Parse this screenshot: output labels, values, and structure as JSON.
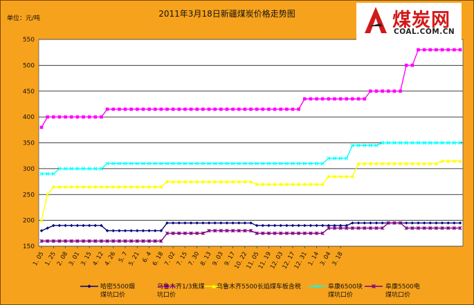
{
  "logo": {
    "title": "煤炭网",
    "subtitle": "COAL.COM.CN"
  },
  "chart_data": {
    "type": "line",
    "title": "2011年3月18日新疆煤炭价格走势图",
    "ylabel": "单位：元/吨",
    "xlabel": "",
    "ylim": [
      150,
      550
    ],
    "yticks": [
      150,
      200,
      250,
      300,
      350,
      400,
      450,
      500,
      550
    ],
    "grid": true,
    "legend_position": "bottom",
    "x_ticks": [
      "1. 05",
      "1. 25",
      "2. 08",
      "3. 01",
      "3. 15",
      "4. 12",
      "4. 26",
      "5. 7",
      "5. 21",
      "6. 4",
      "6. 18",
      "7. 02",
      "7. 15",
      "7. 30",
      "8. 13",
      "9. 03",
      "9. 17",
      "10. 22",
      "11. 05",
      "11. 19",
      "12. 03",
      "12. 17",
      "12. 31",
      "1. 14",
      "3. 04",
      "3. 18"
    ],
    "x_tick_index": [
      0,
      2,
      4,
      6,
      8,
      10,
      12,
      14,
      16,
      18,
      20,
      22,
      24,
      26,
      28,
      30,
      32,
      34,
      36,
      38,
      40,
      42,
      44,
      46,
      48,
      50
    ],
    "series": [
      {
        "name": "哈密5500烟煤坑口价",
        "color": "#000080",
        "marker": "diamond",
        "values": [
          180,
          185,
          190,
          190,
          190,
          190,
          190,
          190,
          190,
          190,
          190,
          180,
          180,
          180,
          180,
          180,
          180,
          180,
          180,
          180,
          180,
          195,
          195,
          195,
          195,
          195,
          195,
          195,
          195,
          195,
          195,
          195,
          195,
          195,
          195,
          195,
          190,
          190,
          190,
          190,
          190,
          190,
          190,
          190,
          190,
          190,
          190,
          190,
          190,
          190,
          190,
          190,
          195,
          195,
          195,
          195,
          195,
          195,
          195,
          195,
          195,
          195,
          195,
          195,
          195,
          195,
          195,
          195,
          195,
          195,
          195
        ]
      },
      {
        "name": "乌鲁木齐1/3焦煤坑口价",
        "color": "#ff00ff",
        "marker": "square",
        "values": [
          380,
          400,
          400,
          400,
          400,
          400,
          400,
          400,
          400,
          400,
          400,
          415,
          415,
          415,
          415,
          415,
          415,
          415,
          415,
          415,
          415,
          415,
          415,
          415,
          415,
          415,
          415,
          415,
          415,
          415,
          415,
          415,
          415,
          415,
          415,
          415,
          415,
          415,
          415,
          415,
          415,
          415,
          415,
          415,
          435,
          435,
          435,
          435,
          435,
          435,
          435,
          435,
          435,
          435,
          435,
          450,
          450,
          450,
          450,
          450,
          450,
          500,
          500,
          530,
          530,
          530,
          530,
          530,
          530,
          530,
          530
        ]
      },
      {
        "name": "乌鲁木齐5500长焰煤车板含税",
        "color": "#ffff00",
        "marker": "triangle",
        "values": [
          200,
          250,
          265,
          265,
          265,
          265,
          265,
          265,
          265,
          265,
          265,
          265,
          265,
          265,
          265,
          265,
          265,
          265,
          265,
          265,
          265,
          275,
          275,
          275,
          275,
          275,
          275,
          275,
          275,
          275,
          275,
          275,
          275,
          275,
          275,
          275,
          270,
          270,
          270,
          270,
          270,
          270,
          270,
          270,
          270,
          270,
          270,
          270,
          285,
          285,
          285,
          285,
          285,
          310,
          310,
          310,
          310,
          310,
          310,
          310,
          310,
          310,
          310,
          310,
          310,
          310,
          310,
          315,
          315,
          315,
          315
        ]
      },
      {
        "name": "阜康6500块煤坑口价",
        "color": "#00ffff",
        "marker": "x",
        "values": [
          290,
          290,
          290,
          300,
          300,
          300,
          300,
          300,
          300,
          300,
          300,
          310,
          310,
          310,
          310,
          310,
          310,
          310,
          310,
          310,
          310,
          310,
          310,
          310,
          310,
          310,
          310,
          310,
          310,
          310,
          310,
          310,
          310,
          310,
          310,
          310,
          310,
          310,
          310,
          310,
          310,
          310,
          310,
          310,
          310,
          310,
          310,
          310,
          320,
          320,
          320,
          320,
          345,
          345,
          345,
          345,
          345,
          350,
          350,
          350,
          350,
          350,
          350,
          350,
          350,
          350,
          350,
          350,
          350,
          350,
          350
        ]
      },
      {
        "name": "阜康5500电煤坑口价",
        "color": "#800080",
        "marker": "star",
        "values": [
          160,
          160,
          160,
          160,
          160,
          160,
          160,
          160,
          160,
          160,
          160,
          160,
          160,
          160,
          160,
          160,
          160,
          160,
          160,
          160,
          160,
          175,
          175,
          175,
          175,
          175,
          175,
          175,
          180,
          180,
          180,
          180,
          180,
          180,
          180,
          180,
          175,
          175,
          175,
          175,
          175,
          175,
          175,
          175,
          175,
          175,
          175,
          175,
          185,
          185,
          185,
          185,
          185,
          185,
          185,
          185,
          185,
          185,
          195,
          195,
          195,
          185,
          185,
          185,
          185,
          185,
          185,
          185,
          185,
          185,
          185
        ]
      }
    ]
  }
}
